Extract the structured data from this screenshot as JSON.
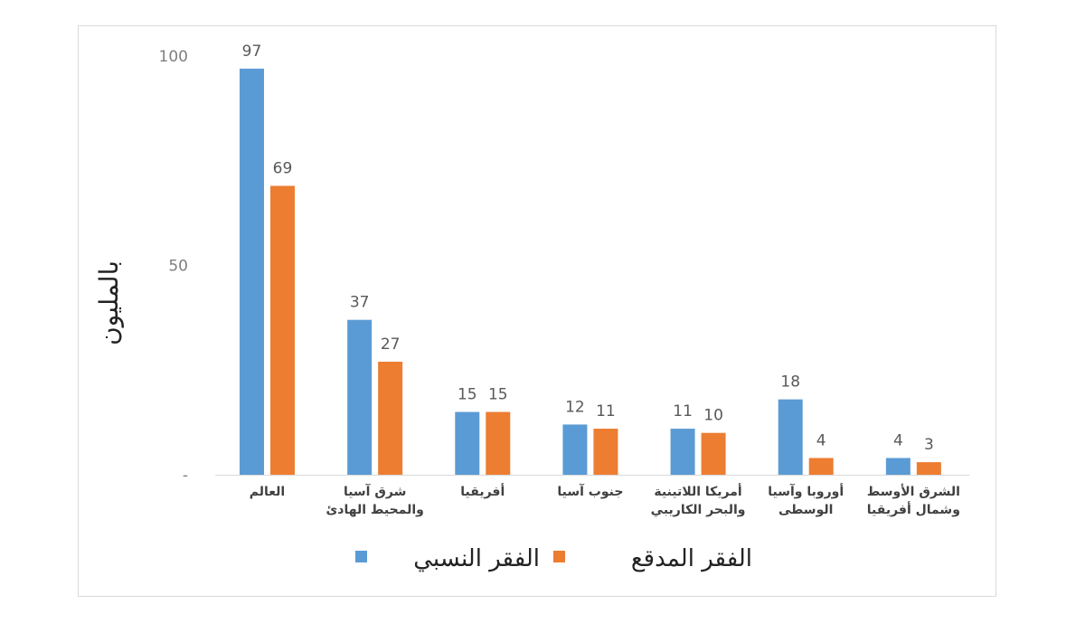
{
  "chart_data": {
    "type": "bar",
    "title": "",
    "xlabel": "",
    "ylabel": "بالمليون",
    "ylim": [
      0,
      100
    ],
    "yticks": [
      "100",
      "50",
      "-"
    ],
    "categories": [
      [
        "العالم"
      ],
      [
        "شرق آسيا",
        "والمحيط الهادئ"
      ],
      [
        "أفريقيا"
      ],
      [
        "جنوب آسيا"
      ],
      [
        "أمريكا اللاتينية",
        "والبحر الكاريبي"
      ],
      [
        "أوروبا وآسيا",
        "الوسطى"
      ],
      [
        "الشرق الأوسط",
        "وشمال أفريقيا"
      ]
    ],
    "series": [
      {
        "name": "الفقر النسبي",
        "color": "#5b9bd5",
        "values": [
          97,
          37,
          15,
          12,
          11,
          18,
          4
        ]
      },
      {
        "name": "الفقر المدقع",
        "color": "#ed7d31",
        "values": [
          69,
          27,
          15,
          11,
          10,
          4,
          3
        ]
      }
    ],
    "grid": false,
    "legend_position": "bottom"
  }
}
